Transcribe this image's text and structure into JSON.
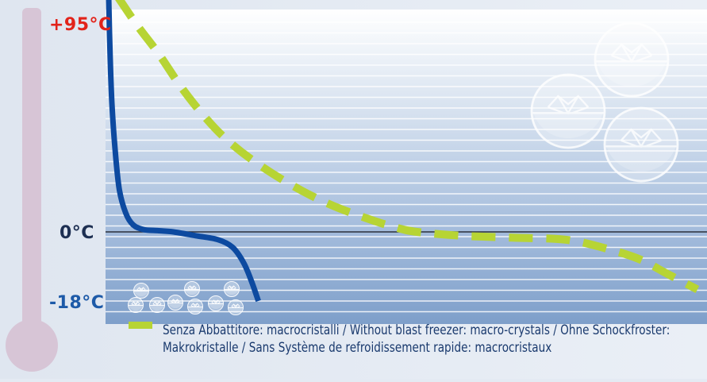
{
  "chart_data": {
    "type": "line",
    "title": "",
    "xlabel": "",
    "ylabel": "",
    "y_tick_labels": [
      {
        "label": "+95°C",
        "value": 95,
        "color": "#e2231a"
      },
      {
        "label": "0°C",
        "value": 0,
        "color": "#1d2f52"
      },
      {
        "label": "-18°C",
        "value": -18,
        "color": "#1d5aa8"
      }
    ],
    "grid": true,
    "series": [
      {
        "style": "solid",
        "color": "#0d4aa0",
        "points": [
          [
            0.3,
            100
          ],
          [
            0.4,
            80
          ],
          [
            0.6,
            55
          ],
          [
            0.9,
            35
          ],
          [
            1.3,
            18
          ],
          [
            1.9,
            8
          ],
          [
            2.6,
            3
          ],
          [
            3.6,
            1
          ],
          [
            5,
            0.5
          ],
          [
            7,
            0
          ],
          [
            10,
            -1
          ],
          [
            13,
            -2
          ],
          [
            15,
            -4
          ],
          [
            16.5,
            -8
          ],
          [
            17.6,
            -13
          ],
          [
            18.5,
            -18
          ]
        ]
      },
      {
        "style": "dashed",
        "color": "#b7d434",
        "points": [
          [
            1.2,
            100
          ],
          [
            3,
            88
          ],
          [
            5,
            76
          ],
          [
            8,
            62
          ],
          [
            11,
            50
          ],
          [
            14,
            40
          ],
          [
            18,
            30
          ],
          [
            23,
            20
          ],
          [
            28,
            12
          ],
          [
            33,
            6
          ],
          [
            37,
            2
          ],
          [
            40,
            0
          ],
          [
            46,
            -1
          ],
          [
            53,
            -1.5
          ],
          [
            60,
            -2
          ],
          [
            65,
            -4
          ],
          [
            70,
            -7
          ],
          [
            74,
            -11
          ],
          [
            78,
            -15
          ]
        ]
      }
    ],
    "legend": [
      {
        "swatch_color": "#b7d434",
        "lines": [
          "Senza Abbattitore: macrocristalli / Without blast freezer: macro-crystals / Ohne Schockfroster:",
          "Makrokristalle / Sans Système de refroidissement rapide: macrocristaux"
        ]
      }
    ]
  },
  "colors": {
    "thermometer": "#d7c5d6",
    "panel_light": "#f1f5fb",
    "band_dark": "#7ea0c9",
    "zero_line": "#2b2f3a",
    "crystal": "#ffffff"
  },
  "icons": [
    "thermometer-icon",
    "ice-crystal-icon"
  ]
}
